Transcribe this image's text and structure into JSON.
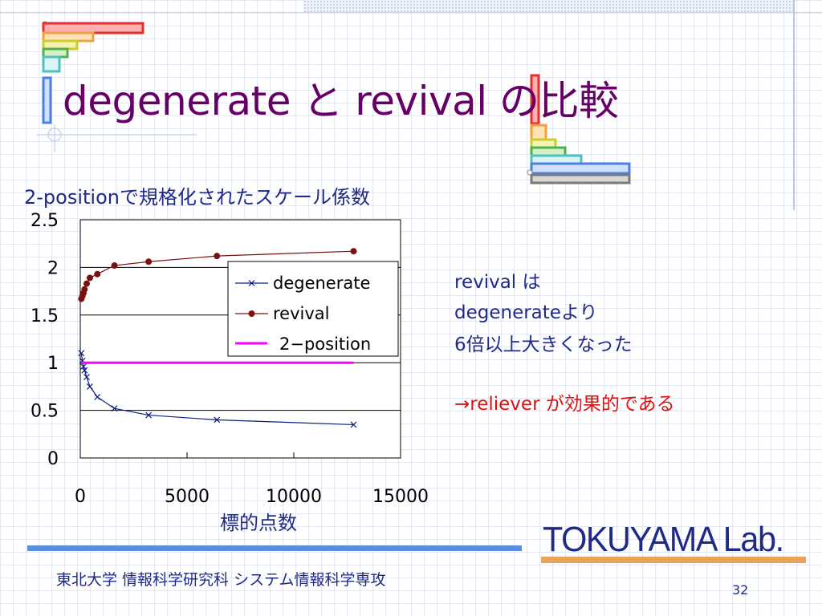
{
  "title": "degenerate と revival の比較",
  "subtitle": "2-positionで規格化されたスケール係数",
  "notes": {
    "line1": "revival は",
    "line2": "degenerateより",
    "line3": "6倍以上大きくなった",
    "conclusion": "→reliever が効果的である"
  },
  "footer": {
    "lab_name": "TOKUYAMA Lab.",
    "university": "東北大学 情報科学研究科 システム情報科学専攻",
    "page_number": "32"
  },
  "chart_data": {
    "type": "line",
    "xlabel": "標的点数",
    "ylabel": "",
    "xlim": [
      0,
      15000
    ],
    "ylim": [
      0,
      2.5
    ],
    "x_ticks": [
      0,
      5000,
      10000,
      15000
    ],
    "y_ticks": [
      0,
      0.5,
      1,
      1.5,
      2,
      2.5
    ],
    "grid": true,
    "legend_position": "top-right",
    "series": [
      {
        "name": "degenerate",
        "color": "#0b1f80",
        "marker": "x",
        "points": [
          [
            50,
            1.1
          ],
          [
            100,
            1.02
          ],
          [
            150,
            0.96
          ],
          [
            200,
            0.92
          ],
          [
            300,
            0.85
          ],
          [
            450,
            0.75
          ],
          [
            800,
            0.64
          ],
          [
            1600,
            0.52
          ],
          [
            3200,
            0.45
          ],
          [
            6400,
            0.4
          ],
          [
            12800,
            0.35
          ]
        ]
      },
      {
        "name": "revival",
        "color": "#7a1010",
        "marker": "circle",
        "points": [
          [
            50,
            1.67
          ],
          [
            100,
            1.7
          ],
          [
            150,
            1.73
          ],
          [
            200,
            1.77
          ],
          [
            300,
            1.83
          ],
          [
            450,
            1.89
          ],
          [
            800,
            1.93
          ],
          [
            1600,
            2.02
          ],
          [
            3200,
            2.06
          ],
          [
            6400,
            2.12
          ],
          [
            12800,
            2.17
          ]
        ]
      },
      {
        "name": "2−position",
        "color": "#ff00ff",
        "marker": "none",
        "points": [
          [
            50,
            1
          ],
          [
            12800,
            1
          ]
        ]
      }
    ]
  }
}
